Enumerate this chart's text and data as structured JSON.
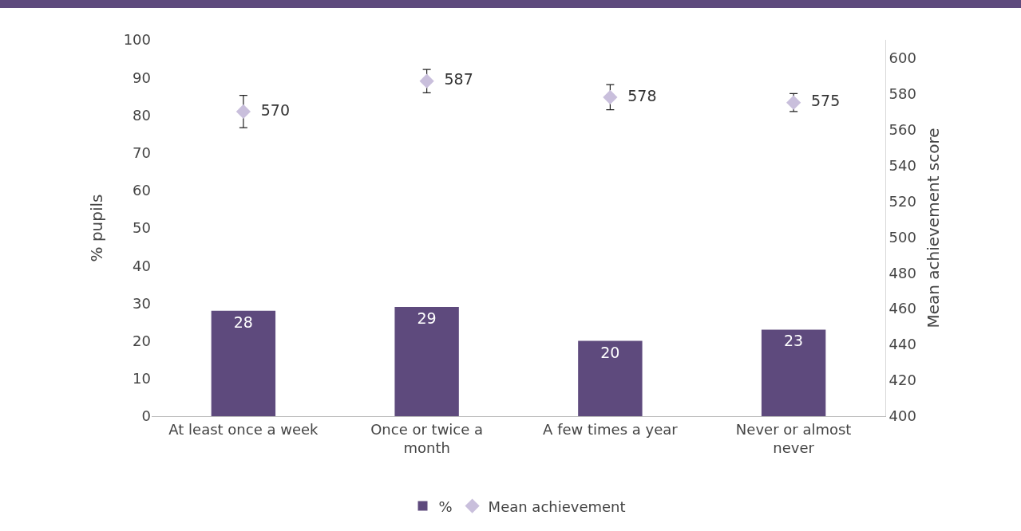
{
  "chart_data": {
    "type": "bar",
    "ylabel": "% pupils",
    "y2label": "Mean achievement score",
    "categories": [
      "At least once a week",
      "Once or twice a month",
      "A few times a year",
      "Never or almost never"
    ],
    "series": [
      {
        "name": "%",
        "color": "#5e4a7d",
        "values": [
          28,
          29,
          20,
          23
        ]
      },
      {
        "name": "Mean achievement",
        "type": "scatter",
        "axis": "y2",
        "color": "#c9bfdc",
        "marker": "diamond",
        "values": [
          570,
          587,
          578,
          575
        ],
        "errors": [
          9,
          6.5,
          7,
          5
        ]
      }
    ],
    "ylim": [
      0,
      100
    ],
    "yticks": [
      0,
      10,
      20,
      30,
      40,
      50,
      60,
      70,
      80,
      90,
      100
    ],
    "y2lim": [
      400,
      610
    ],
    "y2ticks": [
      400,
      420,
      440,
      460,
      480,
      500,
      520,
      540,
      560,
      580,
      600
    ],
    "data_labels": true,
    "grid": false,
    "legend": "bottom"
  }
}
